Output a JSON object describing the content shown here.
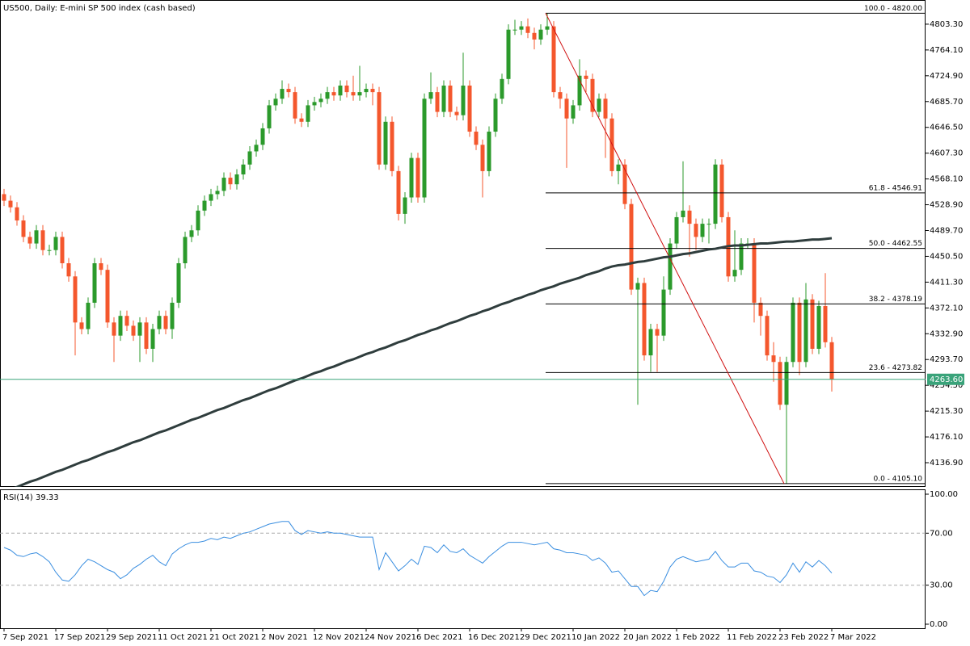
{
  "chart_data": [
    {
      "type": "candlestick",
      "title": "US500, Daily:  E-mini SP 500 index (cash based)",
      "up_color": "#2b9a2b",
      "down_color": "#f4572d",
      "ma_color": "#2f3d3d",
      "fib_color": "#000000",
      "trend_color": "#d01010",
      "price_color": "#3aa37a",
      "ylim": [
        4100.1,
        4833.9
      ],
      "yticks": [
        {
          "value": 4136.9,
          "label": "4136.90"
        },
        {
          "value": 4176.1,
          "label": "4176.10"
        },
        {
          "value": 4215.3,
          "label": "4215.30"
        },
        {
          "value": 4254.5,
          "label": "4254.50"
        },
        {
          "value": 4293.7,
          "label": "4293.70"
        },
        {
          "value": 4332.9,
          "label": "4332.90"
        },
        {
          "value": 4372.1,
          "label": "4372.10"
        },
        {
          "value": 4411.3,
          "label": "4411.30"
        },
        {
          "value": 4450.5,
          "label": "4450.50"
        },
        {
          "value": 4489.7,
          "label": "4489.70"
        },
        {
          "value": 4528.9,
          "label": "4528.90"
        },
        {
          "value": 4568.1,
          "label": "4568.10"
        },
        {
          "value": 4607.3,
          "label": "4607.30"
        },
        {
          "value": 4646.5,
          "label": "4646.50"
        },
        {
          "value": 4685.7,
          "label": "4685.70"
        },
        {
          "value": 4724.9,
          "label": "4724.90"
        },
        {
          "value": 4764.1,
          "label": "4764.10"
        },
        {
          "value": 4803.3,
          "label": "4803.30"
        }
      ],
      "categories": [
        "7 Sep 2021",
        null,
        null,
        null,
        null,
        null,
        null,
        null,
        "17 Sep 2021",
        null,
        null,
        null,
        null,
        null,
        null,
        null,
        "29 Sep 2021",
        null,
        null,
        null,
        null,
        null,
        null,
        null,
        "11 Oct 2021",
        null,
        null,
        null,
        null,
        null,
        null,
        null,
        "21 Oct 2021",
        null,
        null,
        null,
        null,
        null,
        null,
        null,
        "2 Nov 2021",
        null,
        null,
        null,
        null,
        null,
        null,
        null,
        "12 Nov 2021",
        null,
        null,
        null,
        null,
        null,
        null,
        null,
        "24 Nov 2021",
        null,
        null,
        null,
        null,
        null,
        null,
        null,
        "6 Dec 2021",
        null,
        null,
        null,
        null,
        null,
        null,
        null,
        "16 Dec 2021",
        null,
        null,
        null,
        null,
        null,
        null,
        null,
        "29 Dec 2021",
        null,
        null,
        null,
        null,
        null,
        null,
        null,
        "10 Jan 2022",
        null,
        null,
        null,
        null,
        null,
        null,
        null,
        "20 Jan 2022",
        null,
        null,
        null,
        null,
        null,
        null,
        null,
        "1 Feb 2022",
        null,
        null,
        null,
        null,
        null,
        null,
        null,
        "11 Feb 2022",
        null,
        null,
        null,
        null,
        null,
        null,
        null,
        "23 Feb 2022",
        null,
        null,
        null,
        null,
        null,
        null,
        null,
        "7 Mar 2022"
      ],
      "ohlc": [
        [
          4545,
          4553,
          4527,
          4535
        ],
        [
          4535,
          4543,
          4517,
          4525
        ],
        [
          4525,
          4533,
          4497,
          4505
        ],
        [
          4505,
          4513,
          4472,
          4480
        ],
        [
          4480,
          4488,
          4462,
          4470
        ],
        [
          4470,
          4498,
          4462,
          4490
        ],
        [
          4490,
          4498,
          4452,
          4460
        ],
        [
          4460,
          4468,
          4452,
          4460
        ],
        [
          4460,
          4488,
          4452,
          4480
        ],
        [
          4480,
          4488,
          4432,
          4440
        ],
        [
          4440,
          4448,
          4412,
          4420
        ],
        [
          4420,
          4428,
          4300,
          4350
        ],
        [
          4350,
          4358,
          4332,
          4340
        ],
        [
          4340,
          4388,
          4332,
          4380
        ],
        [
          4380,
          4448,
          4372,
          4440
        ],
        [
          4440,
          4448,
          4422,
          4430
        ],
        [
          4430,
          4438,
          4342,
          4350
        ],
        [
          4350,
          4358,
          4290,
          4330
        ],
        [
          4330,
          4368,
          4322,
          4360
        ],
        [
          4360,
          4368,
          4337,
          4345
        ],
        [
          4345,
          4353,
          4322,
          4330
        ],
        [
          4330,
          4358,
          4290,
          4350
        ],
        [
          4350,
          4358,
          4302,
          4310
        ],
        [
          4310,
          4348,
          4290,
          4340
        ],
        [
          4340,
          4368,
          4332,
          4360
        ],
        [
          4360,
          4368,
          4332,
          4340
        ],
        [
          4340,
          4388,
          4325,
          4380
        ],
        [
          4380,
          4448,
          4372,
          4440
        ],
        [
          4440,
          4488,
          4432,
          4480
        ],
        [
          4480,
          4498,
          4472,
          4490
        ],
        [
          4490,
          4528,
          4482,
          4520
        ],
        [
          4520,
          4543,
          4512,
          4535
        ],
        [
          4535,
          4553,
          4527,
          4545
        ],
        [
          4545,
          4558,
          4537,
          4550
        ],
        [
          4550,
          4578,
          4542,
          4570
        ],
        [
          4570,
          4578,
          4552,
          4560
        ],
        [
          4560,
          4583,
          4552,
          4575
        ],
        [
          4575,
          4598,
          4567,
          4590
        ],
        [
          4590,
          4618,
          4582,
          4610
        ],
        [
          4610,
          4628,
          4602,
          4620
        ],
        [
          4620,
          4653,
          4612,
          4645
        ],
        [
          4645,
          4688,
          4637,
          4680
        ],
        [
          4680,
          4698,
          4672,
          4690
        ],
        [
          4690,
          4718,
          4682,
          4705
        ],
        [
          4705,
          4713,
          4692,
          4700
        ],
        [
          4700,
          4708,
          4652,
          4660
        ],
        [
          4660,
          4668,
          4647,
          4655
        ],
        [
          4655,
          4688,
          4647,
          4680
        ],
        [
          4680,
          4693,
          4672,
          4685
        ],
        [
          4685,
          4698,
          4677,
          4690
        ],
        [
          4690,
          4708,
          4682,
          4700
        ],
        [
          4700,
          4708,
          4687,
          4695
        ],
        [
          4695,
          4718,
          4687,
          4710
        ],
        [
          4710,
          4718,
          4692,
          4700
        ],
        [
          4700,
          4725,
          4687,
          4695
        ],
        [
          4695,
          4740,
          4687,
          4700
        ],
        [
          4700,
          4713,
          4692,
          4705
        ],
        [
          4705,
          4713,
          4680,
          4700
        ],
        [
          4700,
          4708,
          4582,
          4590
        ],
        [
          4590,
          4663,
          4582,
          4655
        ],
        [
          4655,
          4663,
          4572,
          4580
        ],
        [
          4580,
          4588,
          4505,
          4515
        ],
        [
          4515,
          4548,
          4500,
          4540
        ],
        [
          4540,
          4608,
          4532,
          4600
        ],
        [
          4600,
          4608,
          4532,
          4540
        ],
        [
          4540,
          4698,
          4532,
          4690
        ],
        [
          4690,
          4730,
          4682,
          4700
        ],
        [
          4700,
          4708,
          4662,
          4670
        ],
        [
          4670,
          4718,
          4662,
          4710
        ],
        [
          4710,
          4718,
          4662,
          4670
        ],
        [
          4670,
          4678,
          4657,
          4665
        ],
        [
          4665,
          4760,
          4657,
          4710
        ],
        [
          4710,
          4718,
          4632,
          4640
        ],
        [
          4640,
          4648,
          4612,
          4620
        ],
        [
          4620,
          4628,
          4540,
          4580
        ],
        [
          4580,
          4648,
          4572,
          4640
        ],
        [
          4640,
          4698,
          4632,
          4690
        ],
        [
          4690,
          4728,
          4682,
          4720
        ],
        [
          4720,
          4803,
          4712,
          4795
        ],
        [
          4795,
          4810,
          4787,
          4795
        ],
        [
          4795,
          4808,
          4787,
          4800
        ],
        [
          4800,
          4812,
          4782,
          4790
        ],
        [
          4790,
          4798,
          4765,
          4780
        ],
        [
          4780,
          4803,
          4772,
          4795
        ],
        [
          4795,
          4820,
          4787,
          4800
        ],
        [
          4800,
          4808,
          4692,
          4700
        ],
        [
          4700,
          4708,
          4675,
          4690
        ],
        [
          4690,
          4698,
          4585,
          4660
        ],
        [
          4660,
          4688,
          4652,
          4680
        ],
        [
          4680,
          4750,
          4672,
          4725
        ],
        [
          4725,
          4733,
          4700,
          4720
        ],
        [
          4720,
          4728,
          4662,
          4670
        ],
        [
          4670,
          4698,
          4662,
          4690
        ],
        [
          4690,
          4698,
          4600,
          4660
        ],
        [
          4660,
          4668,
          4572,
          4580
        ],
        [
          4580,
          4598,
          4560,
          4590
        ],
        [
          4590,
          4598,
          4522,
          4530
        ],
        [
          4530,
          4538,
          4392,
          4400
        ],
        [
          4400,
          4418,
          4225,
          4410
        ],
        [
          4410,
          4418,
          4292,
          4300
        ],
        [
          4300,
          4348,
          4275,
          4340
        ],
        [
          4340,
          4348,
          4275,
          4330
        ],
        [
          4330,
          4420,
          4322,
          4400
        ],
        [
          4400,
          4478,
          4392,
          4470
        ],
        [
          4470,
          4518,
          4462,
          4510
        ],
        [
          4510,
          4595,
          4502,
          4520
        ],
        [
          4520,
          4528,
          4450,
          4500
        ],
        [
          4500,
          4508,
          4460,
          4480
        ],
        [
          4480,
          4508,
          4472,
          4500
        ],
        [
          4500,
          4508,
          4470,
          4500
        ],
        [
          4500,
          4598,
          4492,
          4590
        ],
        [
          4590,
          4598,
          4502,
          4510
        ],
        [
          4510,
          4518,
          4412,
          4420
        ],
        [
          4420,
          4490,
          4412,
          4430
        ],
        [
          4430,
          4478,
          4422,
          4470
        ],
        [
          4470,
          4478,
          4462,
          4470
        ],
        [
          4470,
          4478,
          4350,
          4380
        ],
        [
          4380,
          4388,
          4330,
          4360
        ],
        [
          4360,
          4368,
          4292,
          4300
        ],
        [
          4300,
          4320,
          4260,
          4290
        ],
        [
          4290,
          4298,
          4217,
          4225
        ],
        [
          4225,
          4298,
          4105.1,
          4290
        ],
        [
          4290,
          4388,
          4282,
          4380
        ],
        [
          4380,
          4388,
          4270,
          4290
        ],
        [
          4290,
          4410,
          4282,
          4385
        ],
        [
          4385,
          4393,
          4302,
          4310
        ],
        [
          4310,
          4383,
          4302,
          4375
        ],
        [
          4375,
          4425,
          4312,
          4320
        ],
        [
          4320,
          4328,
          4245,
          4263.6
        ]
      ],
      "ma_values": [
        4093,
        4096,
        4100,
        4104,
        4108,
        4111,
        4115,
        4119,
        4123,
        4126,
        4130,
        4134,
        4138,
        4141,
        4145,
        4149,
        4153,
        4156,
        4160,
        4164,
        4168,
        4171,
        4175,
        4179,
        4183,
        4186,
        4190,
        4194,
        4198,
        4202,
        4205,
        4209,
        4213,
        4217,
        4220,
        4224,
        4228,
        4232,
        4235,
        4239,
        4243,
        4247,
        4250,
        4254,
        4258,
        4262,
        4265,
        4269,
        4273,
        4276,
        4280,
        4283,
        4287,
        4291,
        4294,
        4298,
        4302,
        4305,
        4309,
        4312,
        4316,
        4320,
        4323,
        4327,
        4331,
        4334,
        4338,
        4341,
        4345,
        4349,
        4352,
        4356,
        4360,
        4363,
        4367,
        4370,
        4374,
        4378,
        4381,
        4385,
        4388,
        4392,
        4395,
        4399,
        4402,
        4405,
        4409,
        4412,
        4415,
        4418,
        4422,
        4425,
        4428,
        4432,
        4435,
        4437,
        4438,
        4440,
        4442,
        4443,
        4445,
        4447,
        4449,
        4450,
        4452,
        4454,
        4455,
        4457,
        4459,
        4461,
        4462,
        4464,
        4466,
        4467,
        4467,
        4468,
        4469,
        4470,
        4470,
        4471,
        4472,
        4473,
        4473,
        4474,
        4475,
        4476,
        4476,
        4477,
        4478
      ],
      "fib_levels": [
        {
          "value": 4820,
          "label": "100.0 - 4820.00"
        },
        {
          "value": 4546.91,
          "label": "61.8 - 4546.91"
        },
        {
          "value": 4462.55,
          "label": "50.0 - 4462.55"
        },
        {
          "value": 4378.19,
          "label": "38.2 - 4378.19"
        },
        {
          "value": 4273.82,
          "label": "23.6 - 4273.82"
        },
        {
          "value": 4105.1,
          "label": "0.0 - 4105.10"
        }
      ],
      "current_price": {
        "value": 4263.6,
        "label": "4263.60"
      }
    },
    {
      "type": "line",
      "name": "RSI(14)",
      "color": "#3a8ee0",
      "ylim": [
        0,
        100
      ],
      "yticks": [
        {
          "value": 100,
          "label": "100.00"
        },
        {
          "value": 70,
          "label": "70.00"
        },
        {
          "value": 30,
          "label": "30.00"
        },
        {
          "value": 0,
          "label": "0.00"
        }
      ],
      "values": [
        59,
        57,
        53,
        52,
        54,
        55,
        52,
        48,
        40,
        34,
        33,
        38,
        45,
        50,
        48,
        45,
        42,
        40,
        35,
        38,
        43,
        46,
        50,
        53,
        48,
        45,
        54,
        58,
        61,
        63,
        63,
        64,
        66,
        65,
        67,
        66,
        68,
        70,
        71,
        73,
        75,
        77,
        78,
        79,
        79,
        72,
        69,
        72,
        71,
        70,
        71,
        70,
        70,
        69,
        68,
        67,
        67,
        67,
        42,
        55,
        48,
        41,
        45,
        50,
        46,
        60,
        59,
        55,
        61,
        56,
        55,
        58,
        53,
        50,
        47,
        52,
        56,
        60,
        63,
        63,
        63,
        62,
        61,
        62,
        63,
        58,
        57,
        55,
        55,
        54,
        53,
        49,
        51,
        47,
        40,
        41,
        35,
        29,
        29,
        22,
        26,
        25,
        33,
        44,
        50,
        52,
        50,
        48,
        49,
        50,
        56,
        49,
        44,
        44,
        47,
        47,
        41,
        40,
        37,
        36,
        32,
        38,
        47,
        40,
        48,
        44,
        49,
        45,
        39.33
      ]
    }
  ]
}
